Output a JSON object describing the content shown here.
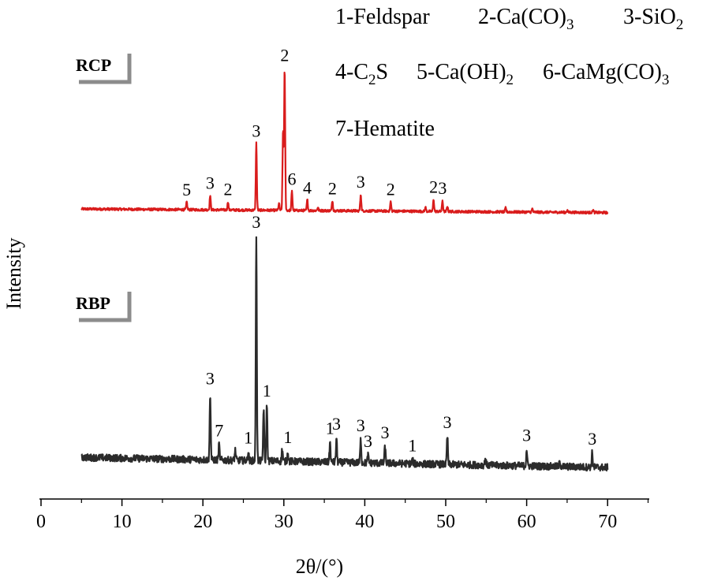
{
  "chart_data": {
    "type": "line",
    "xlabel": "2θ/(°)",
    "ylabel": "Intensity",
    "xlim": [
      0,
      75
    ],
    "x_ticks": [
      0,
      10,
      20,
      30,
      40,
      50,
      60,
      70
    ],
    "y_ticks_visible": false,
    "grid": false,
    "legend": {
      "placement": "top-right",
      "items": [
        {
          "num": "1",
          "text": "Feldspar"
        },
        {
          "num": "2",
          "text": "Ca(CO)",
          "sub": "3"
        },
        {
          "num": "3",
          "text": "SiO",
          "sub": "2"
        },
        {
          "num": "4",
          "text": "C",
          "sub": "2",
          "after": "S"
        },
        {
          "num": "5",
          "text": "Ca(OH)",
          "sub": "2"
        },
        {
          "num": "6",
          "text": "CaMg(CO)",
          "sub": "3"
        },
        {
          "num": "7",
          "text": "Hematite"
        }
      ]
    },
    "series": [
      {
        "name": "RCP",
        "color": "#d91c1c",
        "x_range": [
          5,
          70
        ],
        "baseline_start": 0.35,
        "baseline_end": 0.02,
        "peaks": [
          {
            "x": 18.0,
            "h": 0.7,
            "label": "5"
          },
          {
            "x": 20.9,
            "h": 1.3,
            "label": "3"
          },
          {
            "x": 23.1,
            "h": 0.75,
            "label": "2"
          },
          {
            "x": 26.6,
            "h": 6.0,
            "label": "3"
          },
          {
            "x": 29.4,
            "h": 0.6,
            "label": ""
          },
          {
            "x": 29.9,
            "h": 7.2,
            "label": ""
          },
          {
            "x": 30.1,
            "h": 12.7,
            "label": "2"
          },
          {
            "x": 31.0,
            "h": 1.7,
            "label": "6"
          },
          {
            "x": 32.9,
            "h": 0.95,
            "label": "4"
          },
          {
            "x": 34.2,
            "h": 0.3,
            "label": ""
          },
          {
            "x": 36.0,
            "h": 0.9,
            "label": "2"
          },
          {
            "x": 39.5,
            "h": 1.5,
            "label": "3"
          },
          {
            "x": 43.2,
            "h": 0.85,
            "label": "2"
          },
          {
            "x": 47.5,
            "h": 0.35,
            "label": ""
          },
          {
            "x": 48.5,
            "h": 1.1,
            "label": "2"
          },
          {
            "x": 49.6,
            "h": 1.0,
            "label": "3"
          },
          {
            "x": 50.2,
            "h": 0.5,
            "label": ""
          },
          {
            "x": 57.4,
            "h": 0.35,
            "label": ""
          },
          {
            "x": 60.7,
            "h": 0.3,
            "label": ""
          },
          {
            "x": 65.0,
            "h": 0.2,
            "label": ""
          },
          {
            "x": 68.2,
            "h": 0.25,
            "label": ""
          }
        ]
      },
      {
        "name": "RBP",
        "color": "#2b2b2b",
        "x_range": [
          5,
          70
        ],
        "baseline_start": 0.45,
        "baseline_end": 0.0,
        "peaks": [
          {
            "x": 20.9,
            "h": 3.0,
            "label": "3"
          },
          {
            "x": 22.0,
            "h": 0.7,
            "label": "7"
          },
          {
            "x": 24.0,
            "h": 0.45,
            "label": ""
          },
          {
            "x": 25.6,
            "h": 0.4,
            "label": "1"
          },
          {
            "x": 26.6,
            "h": 10.0,
            "label": "3"
          },
          {
            "x": 27.5,
            "h": 2.3,
            "label": ""
          },
          {
            "x": 27.9,
            "h": 2.5,
            "label": "1"
          },
          {
            "x": 29.8,
            "h": 0.55,
            "label": ""
          },
          {
            "x": 30.5,
            "h": 0.45,
            "label": "1"
          },
          {
            "x": 35.7,
            "h": 0.9,
            "label": "1"
          },
          {
            "x": 36.5,
            "h": 1.1,
            "label": "3"
          },
          {
            "x": 39.5,
            "h": 1.05,
            "label": "3"
          },
          {
            "x": 40.4,
            "h": 0.35,
            "label": "3"
          },
          {
            "x": 42.5,
            "h": 0.75,
            "label": "3"
          },
          {
            "x": 45.9,
            "h": 0.2,
            "label": "1"
          },
          {
            "x": 50.2,
            "h": 1.25,
            "label": "3"
          },
          {
            "x": 54.9,
            "h": 0.3,
            "label": ""
          },
          {
            "x": 60.0,
            "h": 0.75,
            "label": "3"
          },
          {
            "x": 64.1,
            "h": 0.25,
            "label": ""
          },
          {
            "x": 68.1,
            "h": 0.65,
            "label": "3"
          }
        ]
      }
    ]
  }
}
